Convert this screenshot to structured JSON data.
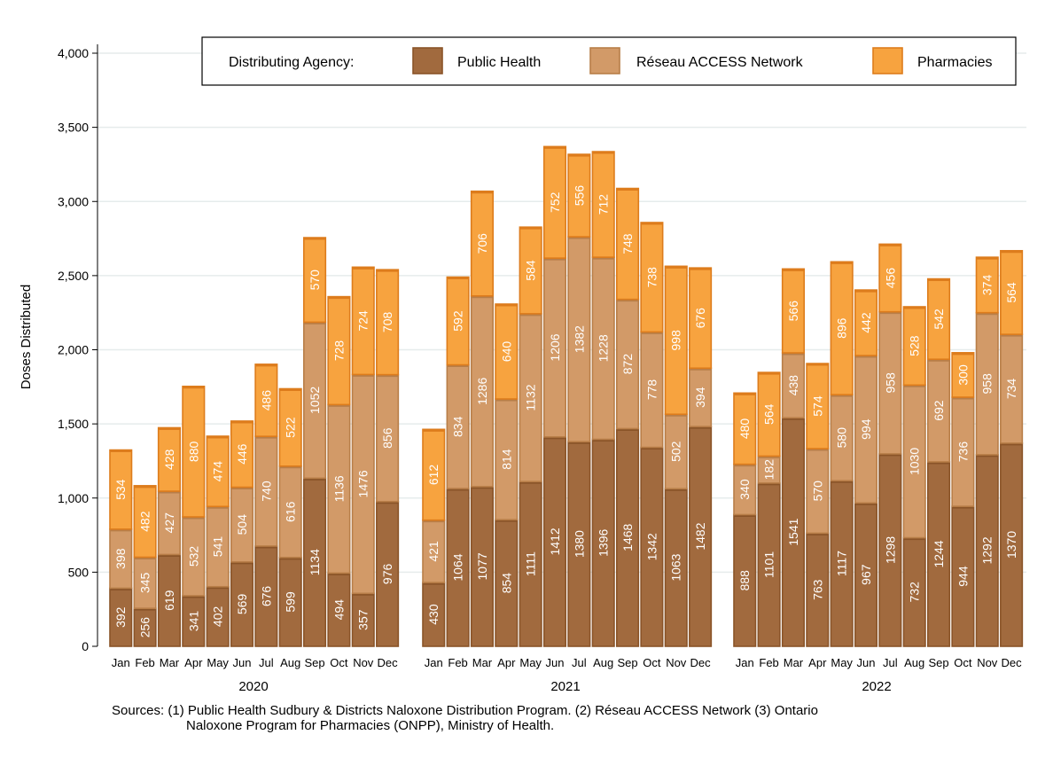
{
  "chart_data": {
    "type": "bar",
    "stacked": true,
    "ylabel": "Doses Distributed",
    "ylim": [
      0,
      4000
    ],
    "yticks": [
      0,
      500,
      1000,
      1500,
      2000,
      2500,
      3000,
      3500,
      4000
    ],
    "ytick_labels": [
      "0",
      "500",
      "1,000",
      "1,500",
      "2,000",
      "2,500",
      "3,000",
      "3,500",
      "4,000"
    ],
    "grid": true,
    "legend_title": "Distributing Agency:",
    "legend_position": "top",
    "months": [
      "Jan",
      "Feb",
      "Mar",
      "Apr",
      "May",
      "Jun",
      "Jul",
      "Aug",
      "Sep",
      "Oct",
      "Nov",
      "Dec"
    ],
    "years": [
      "2020",
      "2021",
      "2022"
    ],
    "series": [
      {
        "name": "Public Health",
        "color": "#a16a3e",
        "stroke": "#8a5428",
        "values": [
          [
            392,
            256,
            619,
            341,
            402,
            569,
            676,
            599,
            1134,
            494,
            357,
            976
          ],
          [
            430,
            1064,
            1077,
            854,
            1111,
            1412,
            1380,
            1396,
            1468,
            1342,
            1063,
            1482
          ],
          [
            888,
            1101,
            1541,
            763,
            1117,
            967,
            1298,
            732,
            1244,
            944,
            1292,
            1370
          ]
        ]
      },
      {
        "name": "Réseau ACCESS Network",
        "color": "#d29a68",
        "stroke": "#b87e48",
        "values": [
          [
            398,
            345,
            427,
            532,
            541,
            504,
            740,
            616,
            1052,
            1136,
            1476,
            856
          ],
          [
            421,
            834,
            1286,
            814,
            1132,
            1206,
            1382,
            1228,
            872,
            778,
            502,
            394
          ],
          [
            340,
            182,
            438,
            570,
            580,
            994,
            958,
            1030,
            692,
            736,
            958,
            734
          ]
        ]
      },
      {
        "name": "Pharmacies",
        "color": "#f7a33f",
        "stroke": "#dd7c1c",
        "values": [
          [
            534,
            482,
            428,
            880,
            474,
            446,
            486,
            522,
            570,
            728,
            724,
            708
          ],
          [
            612,
            592,
            706,
            640,
            584,
            752,
            556,
            712,
            748,
            738,
            998,
            676
          ],
          [
            480,
            564,
            566,
            574,
            896,
            442,
            456,
            528,
            542,
            300,
            374,
            564
          ]
        ]
      }
    ]
  },
  "source_line1": "Sources:  (1) Public Health Sudbury & Districts Naloxone Distribution Program. (2) Réseau ACCESS Network (3) Ontario",
  "source_line2": "Naloxone Program for Pharmacies (ONPP), Ministry of Health."
}
